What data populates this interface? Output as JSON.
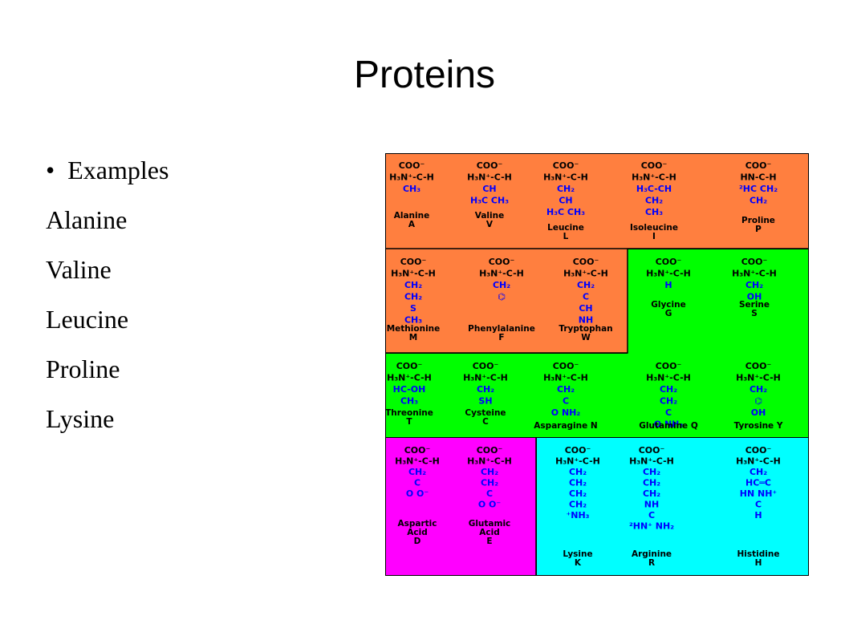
{
  "title": "Proteins",
  "bullets": [
    {
      "text": "Examples",
      "items": [
        "Alanine",
        "Valine",
        "Leucine",
        "Proline",
        "Lysine"
      ]
    }
  ],
  "figure": {
    "cells": [
      {
        "structure": [
          "COO⁻",
          "H₃N⁺-C-H",
          "CH₃"
        ],
        "label": [
          "Alanine",
          "A"
        ]
      },
      {
        "structure": [
          "COO⁻",
          "H₃N⁺-C-H",
          "CH",
          "H₃C  CH₃"
        ],
        "label": [
          "Valine",
          "V"
        ]
      },
      {
        "structure": [
          "COO⁻",
          "H₃N⁺-C-H",
          "CH₂",
          "CH",
          "H₃C  CH₃"
        ],
        "label": [
          "Leucine",
          "L"
        ]
      },
      {
        "structure": [
          "COO⁻",
          "H₃N⁺-C-H",
          "H₃C-CH",
          "CH₂",
          "CH₃"
        ],
        "label": [
          "Isoleucine",
          "I"
        ]
      },
      {
        "structure": [
          "COO⁻",
          "HN-C-H",
          "²HC    CH₂",
          "CH₂"
        ],
        "label": [
          "Proline",
          "P"
        ]
      },
      {
        "structure": [
          "COO⁻",
          "H₃N⁺-C-H",
          "CH₂",
          "CH₂",
          "S",
          "CH₃"
        ],
        "label": [
          "Methionine",
          "M"
        ]
      },
      {
        "structure": [
          "COO⁻",
          "H₃N⁺-C-H",
          "CH₂",
          "⌬"
        ],
        "label": [
          "Phenylalanine",
          "F"
        ]
      },
      {
        "structure": [
          "COO⁻",
          "H₃N⁺-C-H",
          "CH₂",
          "C",
          "CH",
          "NH"
        ],
        "label": [
          "Tryptophan",
          "W"
        ]
      },
      {
        "structure": [
          "COO⁻",
          "H₃N⁺-C-H",
          "H"
        ],
        "label": [
          "Glycine",
          "G"
        ]
      },
      {
        "structure": [
          "COO⁻",
          "H₃N⁺-C-H",
          "CH₂",
          "OH"
        ],
        "label": [
          "Serine",
          "S"
        ]
      },
      {
        "structure": [
          "COO⁻",
          "H₃N⁺-C-H",
          "HC-OH",
          "CH₃"
        ],
        "label": [
          "Threonine",
          "T"
        ]
      },
      {
        "structure": [
          "COO⁻",
          "H₃N⁺-C-H",
          "CH₂",
          "SH"
        ],
        "label": [
          "Cysteine",
          "C"
        ]
      },
      {
        "structure": [
          "COO⁻",
          "H₃N⁺-C-H",
          "CH₂",
          "C",
          "O   NH₂"
        ],
        "label": [
          "Asparagine N"
        ]
      },
      {
        "structure": [
          "COO⁻",
          "H₃N⁺-C-H",
          "CH₂",
          "CH₂",
          "C",
          "O   NH₂"
        ],
        "label": [
          "Glutamine Q"
        ]
      },
      {
        "structure": [
          "COO⁻",
          "H₃N⁺-C-H",
          "CH₂",
          "⌬",
          "OH"
        ],
        "label": [
          "Tyrosine Y"
        ]
      },
      {
        "structure": [
          "COO⁻",
          "H₃N⁺-C-H",
          "CH₂",
          "C",
          "O   O⁻"
        ],
        "label": [
          "Aspartic",
          "Acid",
          "D"
        ]
      },
      {
        "structure": [
          "COO⁻",
          "H₃N⁺-C-H",
          "CH₂",
          "CH₂",
          "C",
          "O   O⁻"
        ],
        "label": [
          "Glutamic",
          "Acid",
          "E"
        ]
      },
      {
        "structure": [
          "COO⁻",
          "H₃N⁺-C-H",
          "CH₂",
          "CH₂",
          "CH₂",
          "CH₂",
          "⁺NH₃"
        ],
        "label": [
          "Lysine",
          "K"
        ]
      },
      {
        "structure": [
          "COO⁻",
          "H₃N⁺-C-H",
          "CH₂",
          "CH₂",
          "CH₂",
          "NH",
          "C",
          "²HN⁺   NH₂"
        ],
        "label": [
          "Arginine",
          "R"
        ]
      },
      {
        "structure": [
          "COO⁻",
          "H₃N⁺-C-H",
          "CH₂",
          "HC═C",
          "HN    NH⁺",
          "C",
          "H"
        ],
        "label": [
          "Histidine",
          "H"
        ]
      }
    ]
  }
}
